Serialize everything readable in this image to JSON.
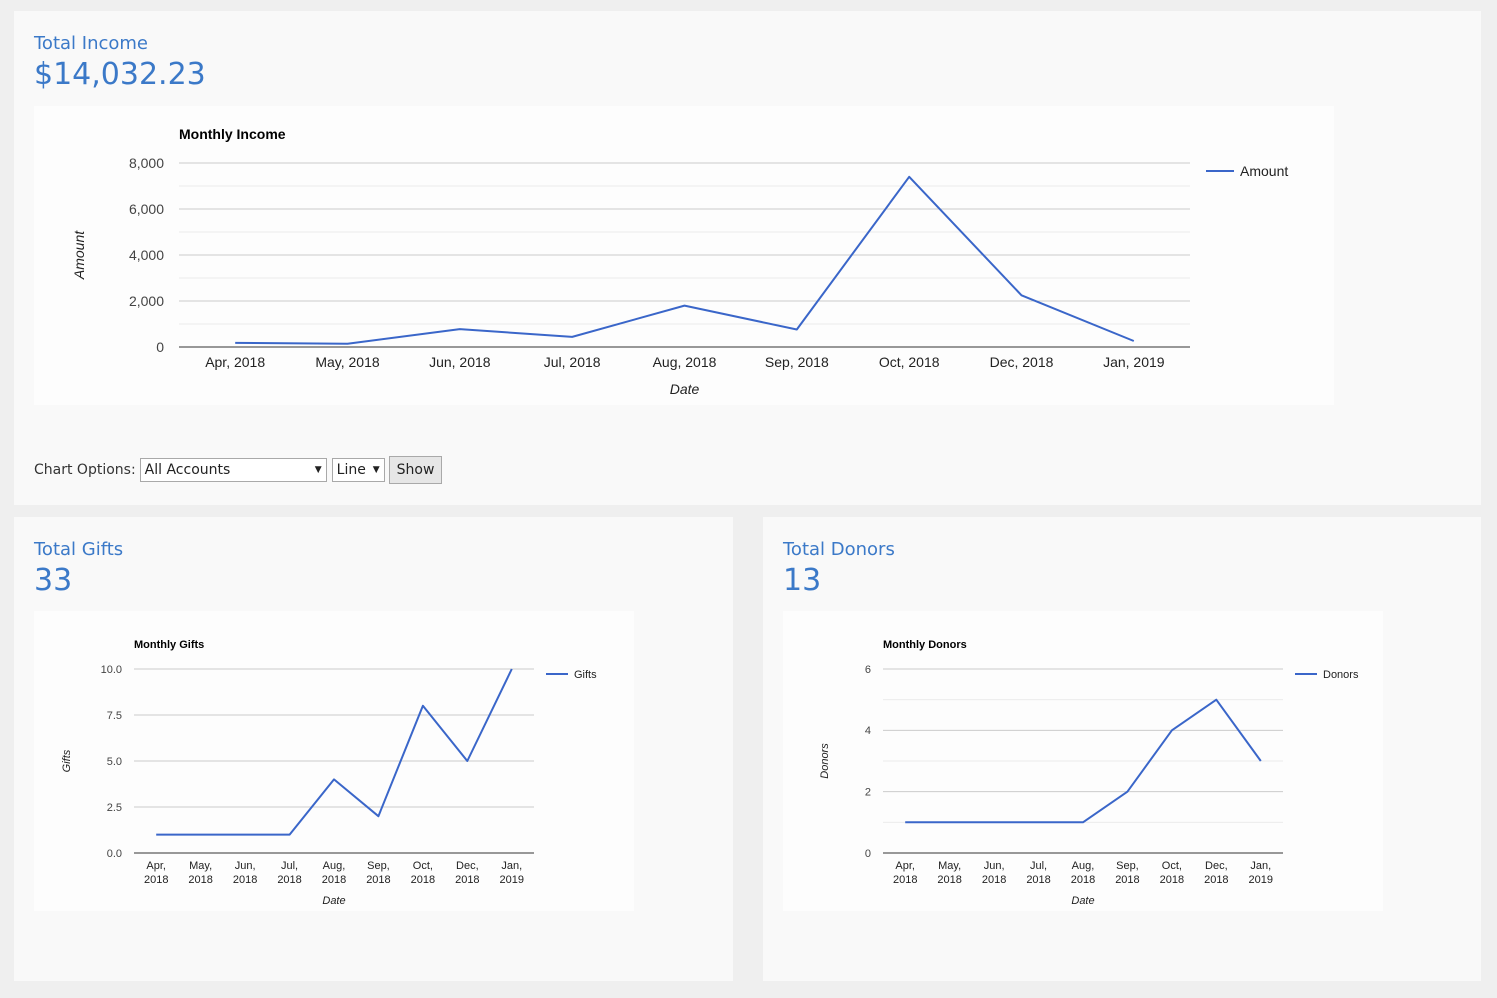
{
  "income": {
    "label": "Total Income",
    "value": "$14,032.23",
    "chart_data": {
      "type": "line",
      "title": "Monthly Income",
      "xlabel": "Date",
      "ylabel": "Amount",
      "categories": [
        "Apr, 2018",
        "May, 2018",
        "Jun, 2018",
        "Jul, 2018",
        "Aug, 2018",
        "Sep, 2018",
        "Oct, 2018",
        "Dec, 2018",
        "Jan, 2019"
      ],
      "series": [
        {
          "name": "Amount",
          "values": [
            180,
            140,
            780,
            440,
            1800,
            760,
            7400,
            2250,
            260
          ]
        }
      ],
      "ylim": [
        0,
        8000
      ],
      "yticks": [
        0,
        2000,
        4000,
        6000,
        8000
      ],
      "ytick_labels": [
        "0",
        "2,000",
        "4,000",
        "6,000",
        "8,000"
      ],
      "minor_gridlines": true,
      "legend": "right",
      "color": "#3a66c9"
    }
  },
  "options": {
    "label": "Chart Options:",
    "account": "All Accounts",
    "chart_type": "Line",
    "show_label": "Show"
  },
  "gifts": {
    "label": "Total Gifts",
    "value": "33",
    "chart_data": {
      "type": "line",
      "title": "Monthly Gifts",
      "xlabel": "Date",
      "ylabel": "Gifts",
      "categories": [
        "Apr, 2018",
        "May, 2018",
        "Jun, 2018",
        "Jul, 2018",
        "Aug, 2018",
        "Sep, 2018",
        "Oct, 2018",
        "Dec, 2018",
        "Jan, 2019"
      ],
      "series": [
        {
          "name": "Gifts",
          "values": [
            1,
            1,
            1,
            1,
            4,
            2,
            8,
            5,
            10
          ]
        }
      ],
      "ylim": [
        0,
        10
      ],
      "yticks": [
        0,
        2.5,
        5,
        7.5,
        10
      ],
      "ytick_labels": [
        "0.0",
        "2.5",
        "5.0",
        "7.5",
        "10.0"
      ],
      "minor_gridlines": false,
      "legend": "right",
      "color": "#3a66c9"
    }
  },
  "donors": {
    "label": "Total Donors",
    "value": "13",
    "chart_data": {
      "type": "line",
      "title": "Monthly Donors",
      "xlabel": "Date",
      "ylabel": "Donors",
      "categories": [
        "Apr, 2018",
        "May, 2018",
        "Jun, 2018",
        "Jul, 2018",
        "Aug, 2018",
        "Sep, 2018",
        "Oct, 2018",
        "Dec, 2018",
        "Jan, 2019"
      ],
      "series": [
        {
          "name": "Donors",
          "values": [
            1,
            1,
            1,
            1,
            1,
            2,
            4,
            5,
            3
          ]
        }
      ],
      "ylim": [
        0,
        6
      ],
      "yticks": [
        0,
        2,
        4,
        6
      ],
      "ytick_labels": [
        "0",
        "2",
        "4",
        "6"
      ],
      "minor_gridlines": true,
      "legend": "right",
      "color": "#3a66c9"
    }
  }
}
